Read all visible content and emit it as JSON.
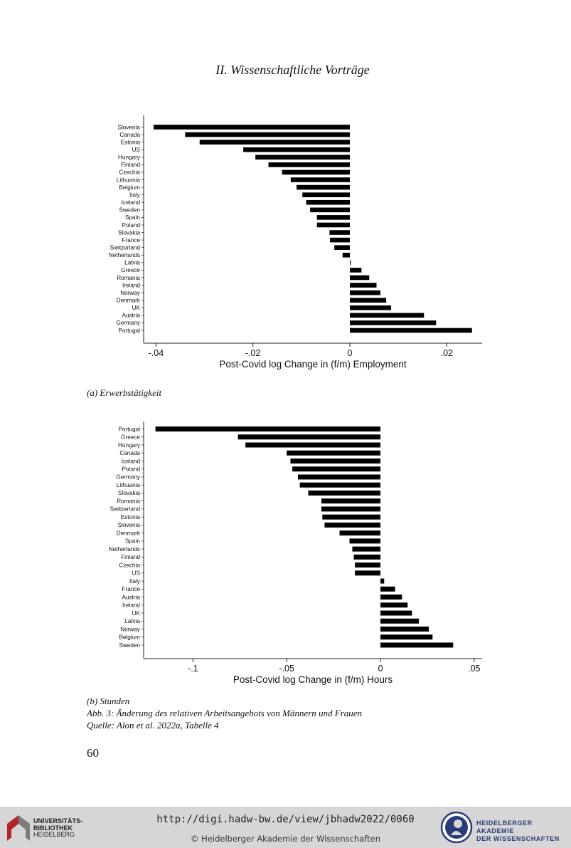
{
  "running_head": "II. Wissenschaftliche Vorträge",
  "figures": [
    {
      "caption": "(a) Erwerbstätigkeit"
    },
    {
      "caption": "(b) Stunden"
    }
  ],
  "caption_lines": [
    "Abb. 3: Änderung des relativen Arbeitsangebots von Männern und Frauen",
    "Quelle: Alon et al. 2022a, Tabelle 4"
  ],
  "page_number": "60",
  "footer": {
    "url": "http://digi.hadw-bw.de/view/jbhadw2022/0060",
    "copyright": "© Heidelberger Akademie der Wissenschaften",
    "left_logo_lines": [
      "UNIVERSITÄTS-",
      "BIBLIOTHEK",
      "HEIDELBERG"
    ],
    "right_logo_lines": [
      "HEIDELBERGER AKADEMIE",
      "DER WISSENSCHAFTEN"
    ],
    "colors": {
      "bar": "#d6d6d6",
      "academy_blue": "#2a3b7a",
      "library_red": "#b0262a"
    }
  },
  "chart_data": [
    {
      "type": "bar",
      "orientation": "horizontal",
      "xlabel": "Post-Covid log Change in (f/m) Employment",
      "xticks": [
        -0.04,
        -0.02,
        0,
        0.02
      ],
      "xtick_labels": [
        "-.04",
        "-.02",
        "0",
        ".02"
      ],
      "xlim": [
        -0.0405,
        0.027
      ],
      "categories": [
        "Slovenia",
        "Canada",
        "Estonia",
        "US",
        "Hungary",
        "Finland",
        "Czechia",
        "Lithuania",
        "Belgium",
        "Italy",
        "Iceland",
        "Sweden",
        "Spain",
        "Poland",
        "Slovakia",
        "France",
        "Switzerland",
        "Netherlands",
        "Latvia",
        "Greece",
        "Romania",
        "Ireland",
        "Norway",
        "Denmark",
        "UK",
        "Austria",
        "Germany",
        "Portugal"
      ],
      "values": [
        -0.0405,
        -0.034,
        -0.031,
        -0.022,
        -0.0195,
        -0.0168,
        -0.014,
        -0.0122,
        -0.011,
        -0.0098,
        -0.009,
        -0.0082,
        -0.0068,
        -0.0068,
        -0.0042,
        -0.0041,
        -0.0032,
        -0.0015,
        0.0001,
        0.0024,
        0.004,
        0.0055,
        0.0063,
        0.0075,
        0.0085,
        0.0153,
        0.0178,
        0.0252
      ],
      "grid": false,
      "bar_color": "#000000"
    },
    {
      "type": "bar",
      "orientation": "horizontal",
      "xlabel": "Post-Covid log Change in (f/m) Hours",
      "xticks": [
        -0.1,
        -0.05,
        0,
        0.05
      ],
      "xtick_labels": [
        "-.1",
        "-.05",
        "0",
        ".05"
      ],
      "xlim": [
        -0.121,
        0.055
      ],
      "categories": [
        "Portugal",
        "Greece",
        "Hungary",
        "Canada",
        "Iceland",
        "Poland",
        "Germany",
        "Lithuania",
        "Slovakia",
        "Romania",
        "Switzerland",
        "Estonia",
        "Slovenia",
        "Denmark",
        "Spain",
        "Netherlands",
        "Finland",
        "Czechia",
        "US",
        "Italy",
        "France",
        "Austria",
        "Ireland",
        "UK",
        "Latvia",
        "Norway",
        "Belgium",
        "Sweden"
      ],
      "values": [
        -0.12,
        -0.076,
        -0.072,
        -0.05,
        -0.048,
        -0.047,
        -0.044,
        -0.043,
        -0.0385,
        -0.0315,
        -0.0315,
        -0.031,
        -0.0298,
        -0.0218,
        -0.0165,
        -0.015,
        -0.0142,
        -0.0136,
        -0.0136,
        0.002,
        0.0078,
        0.0115,
        0.0145,
        0.0168,
        0.0205,
        0.0258,
        0.0278,
        0.0388
      ],
      "grid": false,
      "bar_color": "#000000"
    }
  ]
}
